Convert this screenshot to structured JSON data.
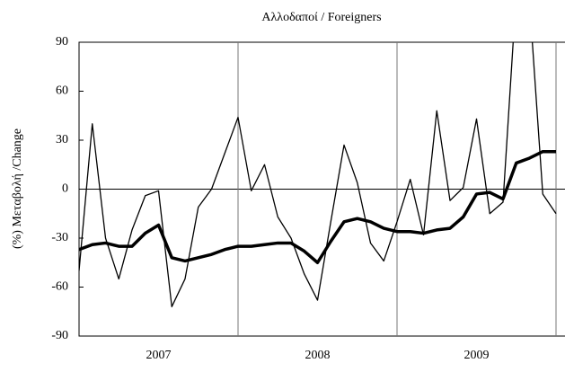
{
  "chart_data": {
    "type": "line",
    "title": "Αλλοδαποί / Foreigners",
    "y_label": "(%) Μεταβολή /Change",
    "categories": [
      null,
      null,
      null,
      null,
      null,
      null,
      "2007",
      null,
      null,
      null,
      null,
      null,
      null,
      null,
      null,
      null,
      null,
      null,
      "2008",
      null,
      null,
      null,
      null,
      null,
      null,
      null,
      null,
      null,
      null,
      null,
      "2009",
      null,
      null,
      null,
      null,
      null,
      null
    ],
    "series": [
      {
        "color": "#000000",
        "line_width": 1.3,
        "values": [
          -50,
          40,
          -30,
          -55,
          -25,
          -4,
          -1,
          -72,
          -55,
          -11,
          0,
          22,
          44,
          -1,
          15,
          -17,
          -30,
          -52,
          -68,
          -20,
          27,
          4,
          -33,
          -44,
          -20,
          6,
          -28,
          48,
          -7,
          1,
          43,
          -15,
          -8,
          120,
          115,
          -3,
          -15
        ]
      },
      {
        "color": "#000000",
        "line_width": 3.5,
        "values": [
          -37,
          -34,
          -33,
          -35,
          -35,
          -27,
          -22,
          -42,
          -44,
          -42,
          -40,
          -37,
          -35,
          -35,
          -34,
          -33,
          -33,
          -38,
          -45,
          -32,
          -20,
          -18,
          -20,
          -24,
          -26,
          -26,
          -27,
          -25,
          -24,
          -17,
          -3,
          -2,
          -6,
          16,
          19,
          23,
          23
        ]
      }
    ],
    "ylim": [
      -90,
      90
    ],
    "yticks": [
      -90,
      -60,
      -30,
      0,
      30,
      60,
      90
    ],
    "year_grid": true,
    "zero_line": true
  }
}
